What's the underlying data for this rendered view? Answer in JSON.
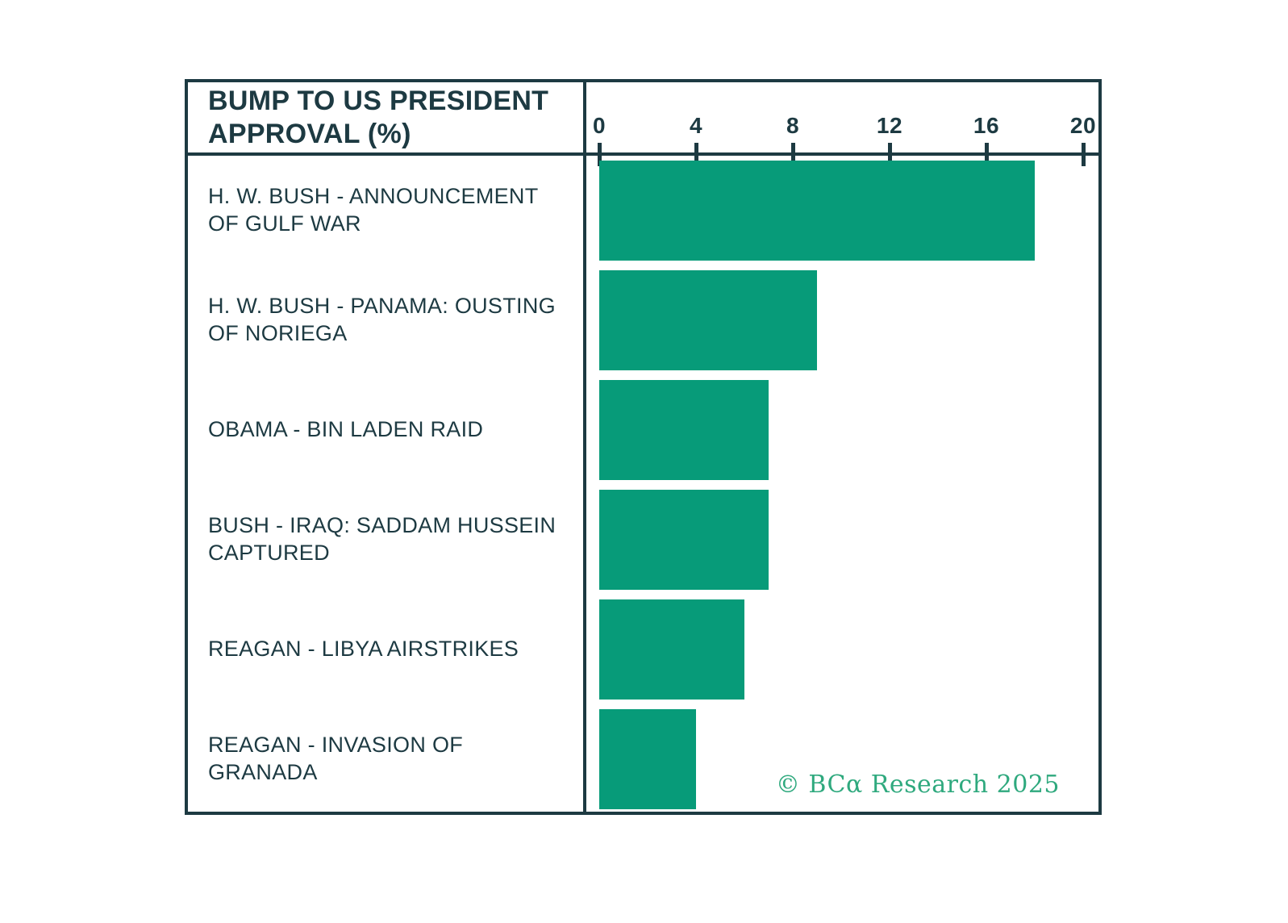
{
  "chart_data": {
    "type": "bar",
    "orientation": "horizontal",
    "title": "BUMP TO US PRESIDENT APPROVAL (%)",
    "categories": [
      "H. W. BUSH - ANNOUNCEMENT OF GULF WAR",
      "H. W. BUSH - PANAMA: OUSTING OF NORIEGA",
      "OBAMA - BIN LADEN RAID",
      "BUSH - IRAQ: SADDAM HUSSEIN CAPTURED",
      "REAGAN - LIBYA AIRSTRIKES",
      "REAGAN - INVASION OF GRANADA"
    ],
    "values": [
      18,
      9,
      7,
      7,
      6,
      4
    ],
    "xlabel": "",
    "ylabel": "",
    "xlim": [
      0,
      20
    ],
    "x_ticks": [
      0,
      4,
      8,
      12,
      16,
      20
    ],
    "grid": false,
    "legend": false
  },
  "footer": {
    "credit": "© BCα Research 2025"
  },
  "colors": {
    "bar": "#079b79",
    "frame": "#1d3a42",
    "text": "#1d3a42",
    "credit": "#2fa97e",
    "background": "#ffffff"
  }
}
